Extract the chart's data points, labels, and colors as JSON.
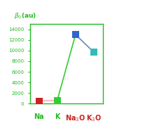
{
  "x_positions": [
    1,
    2,
    3,
    4
  ],
  "values": [
    500,
    650,
    13000,
    9700
  ],
  "bar_colors": [
    "#cc2222",
    "#33cc33",
    "#3366cc",
    "#33bbbb"
  ],
  "ylim": [
    0,
    15000
  ],
  "yticks": [
    0,
    2000,
    4000,
    6000,
    8000,
    10000,
    12000,
    14000
  ],
  "axis_color": "#22bb22",
  "tick_label_color": "#22bb22",
  "xlabel_texts": [
    "Na",
    "K",
    "Na$_3$O",
    "K$_3$O"
  ],
  "xlabel_colors": [
    "#22bb22",
    "#22bb22",
    "#cc2222",
    "#cc2222"
  ],
  "line_color_pink": "#ffaaaa",
  "line_color_green": "#33cc33",
  "line_color_blue": "#6688bb",
  "background_color": "#ffffff",
  "marker_size": 60,
  "line_width": 1.2,
  "ylabel_text": "$\\beta_0$(au)",
  "ylabel_color": "#22bb22",
  "ylabel_fontsize": 6.5,
  "tick_fontsize": 5.0,
  "xlabel_fontsize": 7.0,
  "figsize": [
    2.37,
    1.89
  ],
  "dpi": 100
}
